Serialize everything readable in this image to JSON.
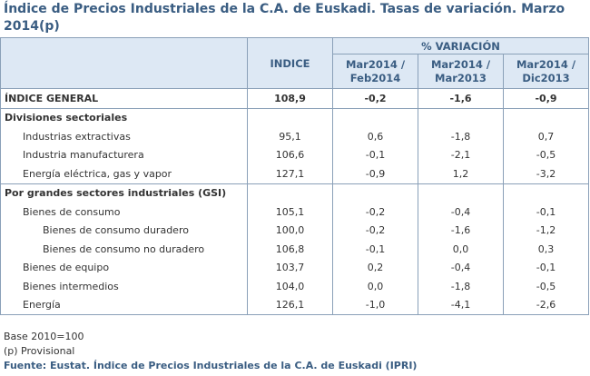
{
  "title": "Índice de Precios Industriales de la C.A. de Euskadi. Tasas de variación. Marzo 2014(p)",
  "header": {
    "indice": "INDICE",
    "variacion": "% VARIACIÓN",
    "col1": "Mar2014 / Feb2014",
    "col2": "Mar2014 / Mar2013",
    "col3": "Mar2014 / Dic2013"
  },
  "rows": [
    {
      "label": "ÍNDICE GENERAL",
      "indice": "108,9",
      "v1": "-0,2",
      "v2": "-1,6",
      "v3": "-0,9"
    },
    {
      "label": "Divisiones sectoriales"
    },
    {
      "label": "Industrias extractivas",
      "indice": "95,1",
      "v1": "0,6",
      "v2": "-1,8",
      "v3": "0,7"
    },
    {
      "label": "Industria manufacturera",
      "indice": "106,6",
      "v1": "-0,1",
      "v2": "-2,1",
      "v3": "-0,5"
    },
    {
      "label": "Energía eléctrica, gas y vapor",
      "indice": "127,1",
      "v1": "-0,9",
      "v2": "1,2",
      "v3": "-3,2"
    },
    {
      "label": "Por grandes sectores industriales (GSI)"
    },
    {
      "label": "Bienes de consumo",
      "indice": "105,1",
      "v1": "-0,2",
      "v2": "-0,4",
      "v3": "-0,1"
    },
    {
      "label": "Bienes de consumo duradero",
      "indice": "100,0",
      "v1": "-0,2",
      "v2": "-1,6",
      "v3": "-1,2"
    },
    {
      "label": "Bienes de consumo no duradero",
      "indice": "106,8",
      "v1": "-0,1",
      "v2": "0,0",
      "v3": "0,3"
    },
    {
      "label": "Bienes de equipo",
      "indice": "103,7",
      "v1": "0,2",
      "v2": "-0,4",
      "v3": "-0,1"
    },
    {
      "label": "Bienes intermedios",
      "indice": "104,0",
      "v1": "0,0",
      "v2": "-1,8",
      "v3": "-0,5"
    },
    {
      "label": "Energía",
      "indice": "126,1",
      "v1": "-1,0",
      "v2": "-4,1",
      "v3": "-2,6"
    }
  ],
  "footer": {
    "base": "Base 2010=100",
    "provisional": "(p) Provisional",
    "source": "Fuente: Eustat. Índice de Precios Industriales de la C.A. de Euskadi (IPRI)"
  }
}
